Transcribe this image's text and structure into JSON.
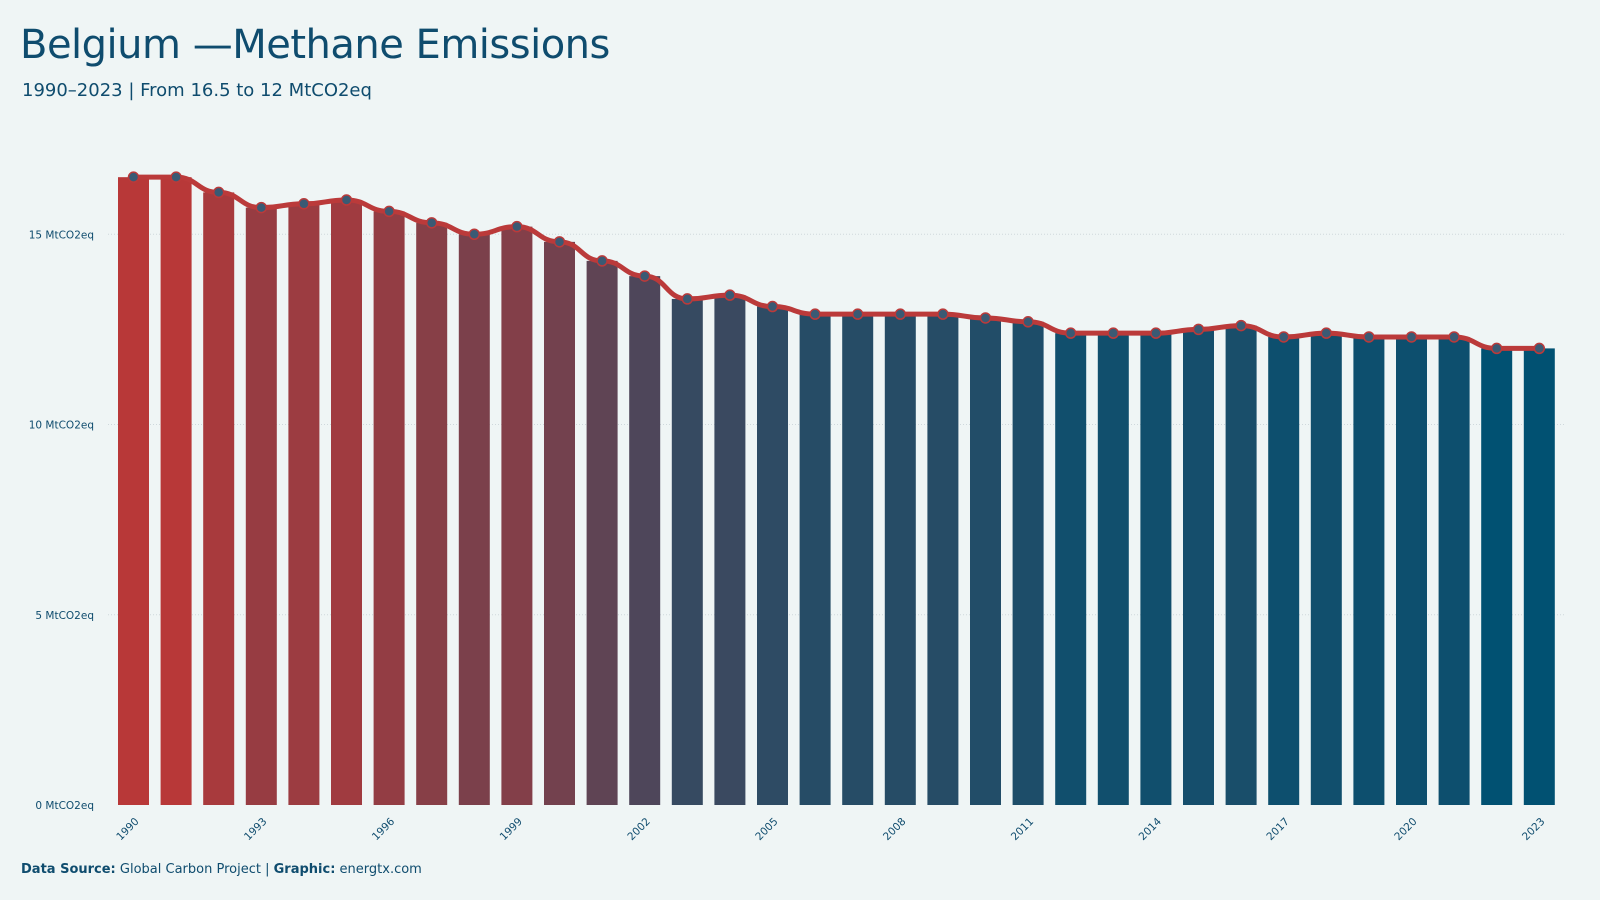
{
  "header": {
    "title": "Belgium —Methane Emissions",
    "subtitle": "1990–2023 | From 16.5 to 12 MtCO2eq"
  },
  "footer": {
    "source_label": "Data Source:",
    "source_value": "Global Carbon Project",
    "separator": "|",
    "graphic_label": "Graphic:",
    "graphic_value": "energtx.com"
  },
  "colors": {
    "start_bar": "#b83838",
    "end_bar": "#015172",
    "line": "#bb3a3a",
    "marker_fill": "#3a5a74",
    "text": "#0f4c6e",
    "grid": "#cfd8dc",
    "background": "#eff5f5"
  },
  "chart_data": {
    "type": "bar",
    "title": "Belgium —Methane Emissions",
    "subtitle": "1990–2023 | From 16.5 to 12 MtCO2eq",
    "categories": [
      1990,
      1991,
      1992,
      1993,
      1994,
      1995,
      1996,
      1997,
      1998,
      1999,
      2000,
      2001,
      2002,
      2003,
      2004,
      2005,
      2006,
      2007,
      2008,
      2009,
      2010,
      2011,
      2012,
      2013,
      2014,
      2015,
      2016,
      2017,
      2018,
      2019,
      2020,
      2021,
      2022,
      2023
    ],
    "values": [
      16.5,
      16.5,
      16.1,
      15.7,
      15.8,
      15.9,
      15.6,
      15.3,
      15.0,
      15.2,
      14.8,
      14.3,
      13.9,
      13.3,
      13.4,
      13.1,
      12.9,
      12.9,
      12.9,
      12.9,
      12.8,
      12.7,
      12.4,
      12.4,
      12.4,
      12.5,
      12.6,
      12.3,
      12.4,
      12.3,
      12.3,
      12.3,
      12.0,
      12.0
    ],
    "overlay": "line with markers",
    "x_tick_labels": [
      "1990",
      "1993",
      "1996",
      "1999",
      "2002",
      "2005",
      "2008",
      "2011",
      "2014",
      "2017",
      "2020",
      "2023"
    ],
    "y_ticks": [
      0,
      5,
      10,
      15
    ],
    "y_tick_labels": [
      "0 MtCO2eq",
      "5 MtCO2eq",
      "10 MtCO2eq",
      "15 MtCO2eq"
    ],
    "ylim": [
      0,
      17
    ],
    "grid": "horizontal dotted",
    "legend": "none"
  }
}
